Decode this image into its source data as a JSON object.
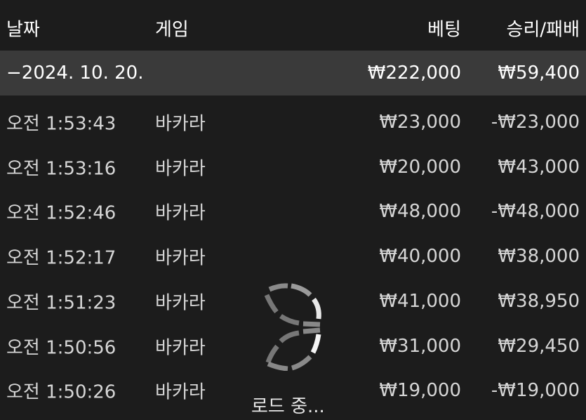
{
  "header": {
    "date": "날짜",
    "game": "게임",
    "bet": "베팅",
    "result": "승리/패배"
  },
  "group": {
    "toggle": "−",
    "date": "2024. 10. 20.",
    "bet": "₩222,000",
    "result": "₩59,400"
  },
  "rows": [
    {
      "time": "오전 1:53:43",
      "game": "바카라",
      "bet": "₩23,000",
      "result": "-₩23,000"
    },
    {
      "time": "오전 1:53:16",
      "game": "바카라",
      "bet": "₩20,000",
      "result": "₩43,000"
    },
    {
      "time": "오전 1:52:46",
      "game": "바카라",
      "bet": "₩48,000",
      "result": "-₩48,000"
    },
    {
      "time": "오전 1:52:17",
      "game": "바카라",
      "bet": "₩40,000",
      "result": "₩38,000"
    },
    {
      "time": "오전 1:51:23",
      "game": "바카라",
      "bet": "₩41,000",
      "result": "₩38,950"
    },
    {
      "time": "오전 1:50:56",
      "game": "바카라",
      "bet": "₩31,000",
      "result": "₩29,450"
    },
    {
      "time": "오전 1:50:26",
      "game": "바카라",
      "bet": "₩19,000",
      "result": "-₩19,000"
    }
  ],
  "loading": {
    "icon": "loading-spinner-icon",
    "text": "로드 중..."
  }
}
